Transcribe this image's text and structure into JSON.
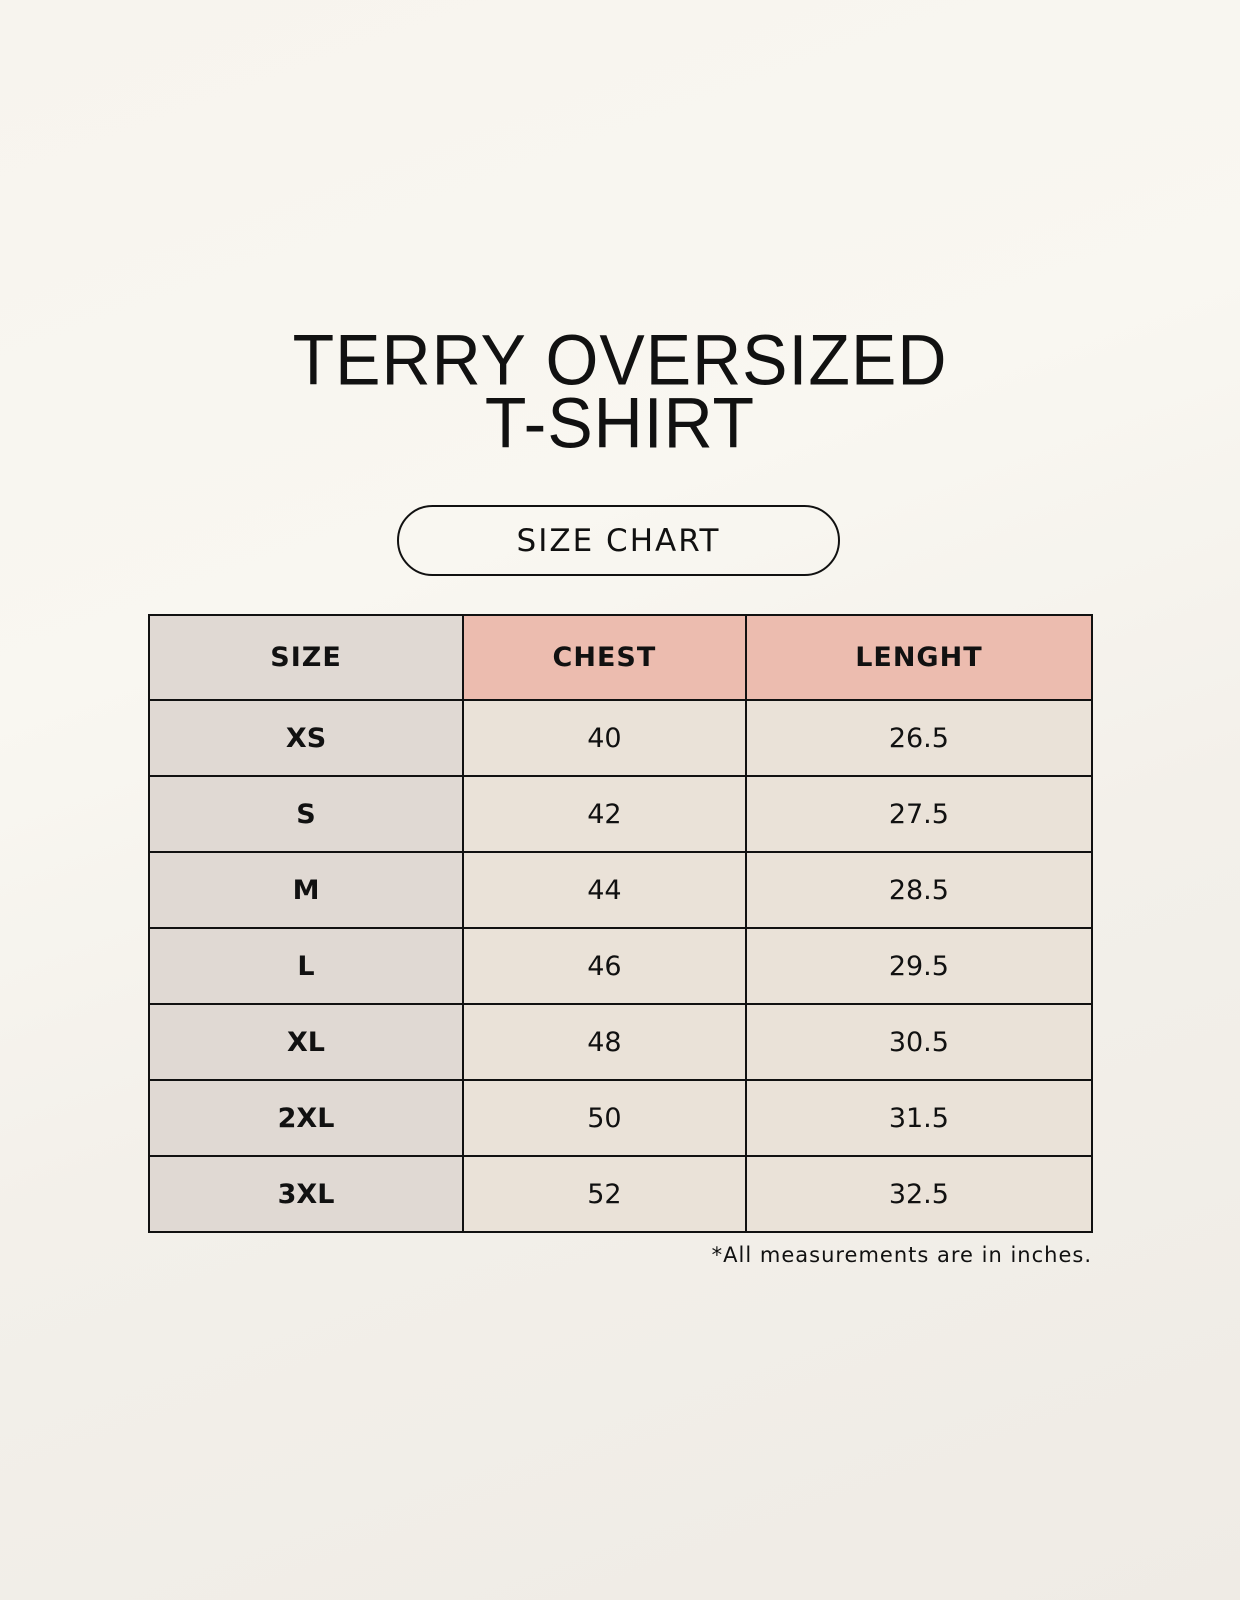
{
  "title": {
    "line1": "TERRY OVERSIZED",
    "line2": "T-SHIRT"
  },
  "subtitle": "SIZE CHART",
  "table": {
    "headers": [
      "SIZE",
      "CHEST",
      "LENGHT"
    ],
    "rows": [
      [
        "XS",
        "40",
        "26.5"
      ],
      [
        "S",
        "42",
        "27.5"
      ],
      [
        "M",
        "44",
        "28.5"
      ],
      [
        "L",
        "46",
        "29.5"
      ],
      [
        "XL",
        "48",
        "30.5"
      ],
      [
        "2XL",
        "50",
        "31.5"
      ],
      [
        "3XL",
        "52",
        "32.5"
      ]
    ]
  },
  "footnote": "*All measurements are in inches.",
  "colors": {
    "size_column": "#e0d9d3",
    "header_accent": "#ecbcaf",
    "value_cells": "#eae2d8"
  }
}
